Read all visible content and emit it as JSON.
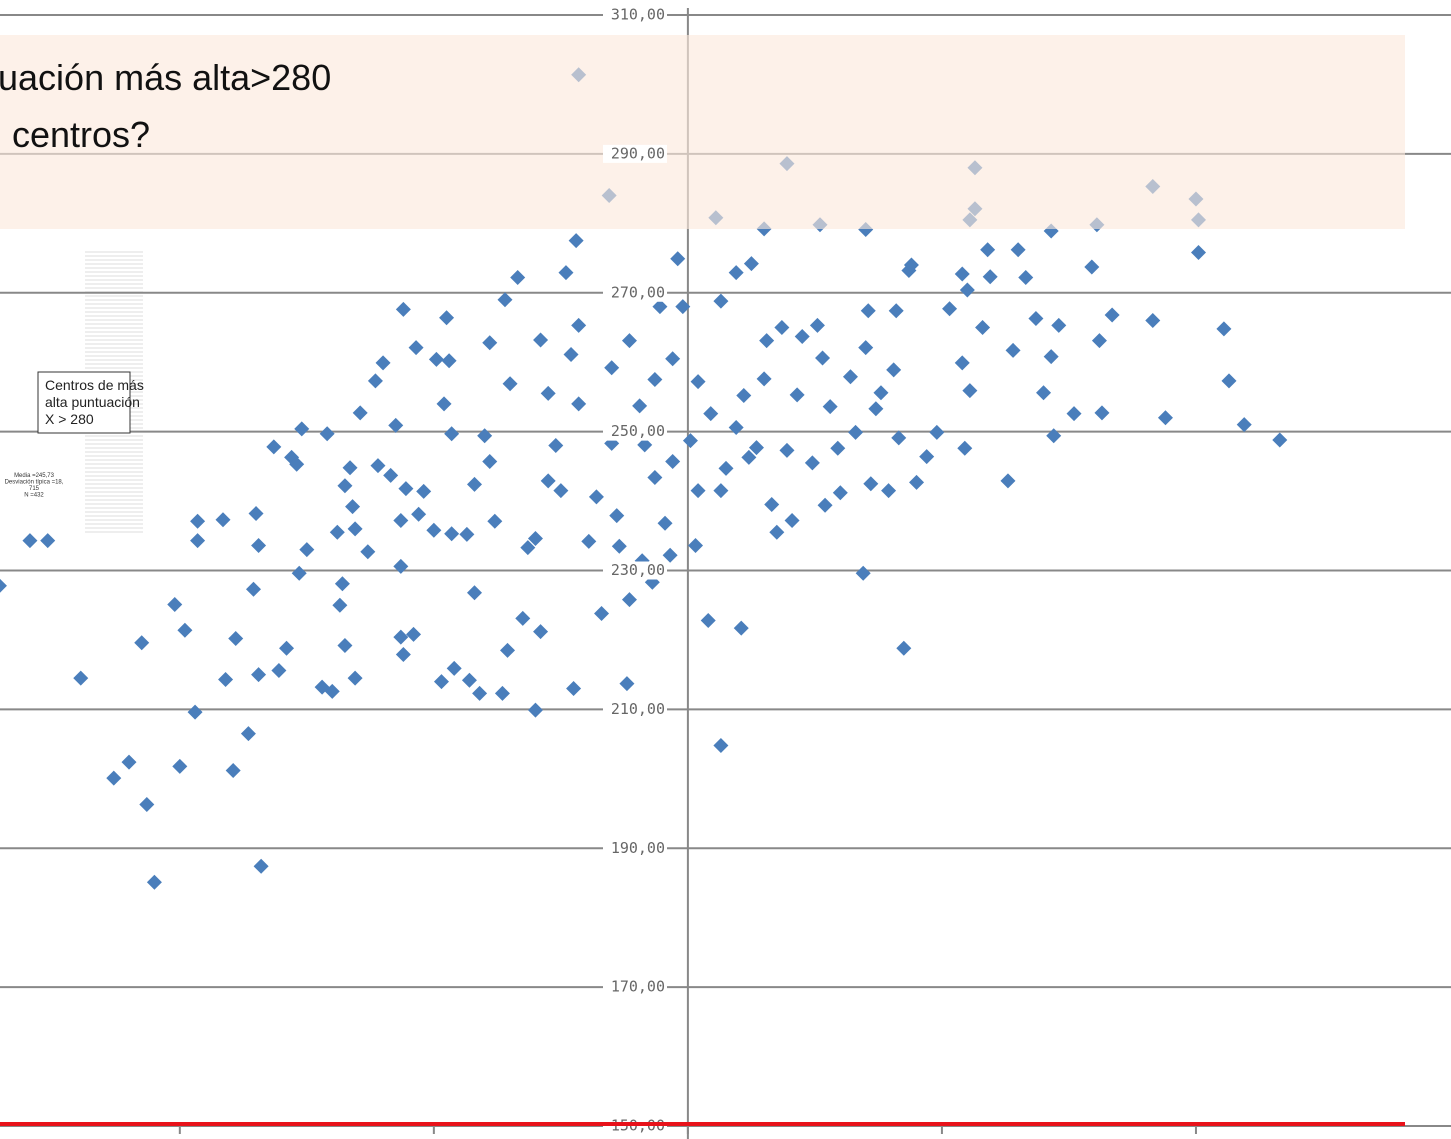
{
  "chart_data": {
    "type": "scatter",
    "title_lines": [
      "uación más alta>280",
      "centros?"
    ],
    "annotation_lines": [
      "Centros de más",
      "alta puntuación",
      "X > 280"
    ],
    "stats_lines": [
      "Media =245,73",
      "Desviación típica =18,",
      "715",
      "N =432"
    ],
    "xlim": [
      -2.7,
      3.0
    ],
    "xticks": [
      -2,
      -1,
      0,
      1,
      2
    ],
    "ylim": [
      150,
      310
    ],
    "yticks": [
      {
        "value": 150,
        "label": "150,00"
      },
      {
        "value": 170,
        "label": "170,00"
      },
      {
        "value": 190,
        "label": "190,00"
      },
      {
        "value": 210,
        "label": "210,00"
      },
      {
        "value": 230,
        "label": "230,00"
      },
      {
        "value": 250,
        "label": "250,00"
      },
      {
        "value": 270,
        "label": "270,00"
      },
      {
        "value": 290,
        "label": "290,00"
      },
      {
        "value": 310,
        "label": "310,00"
      }
    ],
    "grid": true,
    "series": [
      {
        "color": "#4a7ebb",
        "x": [
          -2.71,
          -2.59,
          -2.52,
          -2.39,
          -2.26,
          -2.2,
          -2.15,
          -2.13,
          -2.1,
          -2.02,
          -1.98,
          -2.0,
          -1.94,
          -1.93,
          -1.93,
          -1.83,
          -1.82,
          -1.79,
          -1.78,
          -1.73,
          -1.71,
          -1.7,
          -1.69,
          -1.69,
          -1.68,
          -1.63,
          -1.61,
          -1.58,
          -1.56,
          -1.54,
          -1.53,
          -1.52,
          -1.5,
          -1.44,
          -1.42,
          -1.4,
          -1.38,
          -1.37,
          -1.36,
          -1.35,
          -1.31,
          -1.35,
          -1.33,
          -1.32,
          -1.31,
          -1.29,
          -1.26,
          -1.23,
          -1.22,
          -1.2,
          -1.17,
          -1.15,
          -1.13,
          -1.13,
          -1.13,
          -1.12,
          -1.08,
          -1.07,
          -1.12,
          -1.11,
          -1.06,
          -1.04,
          -1.0,
          -0.99,
          -0.96,
          -0.94,
          -0.93,
          -0.95,
          -0.93,
          -0.97,
          -0.92,
          -0.86,
          -0.84,
          -0.82,
          -0.87,
          -0.84,
          -0.8,
          -0.78,
          -0.78,
          -0.76,
          -0.73,
          -0.71,
          -0.72,
          -0.67,
          -0.7,
          -0.63,
          -0.65,
          -0.6,
          -0.6,
          -0.58,
          -0.58,
          -0.55,
          -0.55,
          -0.52,
          -0.5,
          -0.48,
          -0.46,
          -0.45,
          -0.44,
          -0.43,
          -0.43,
          -0.39,
          -0.36,
          -0.34,
          -0.3,
          -0.3,
          -0.28,
          -0.27,
          -0.24,
          -0.23,
          -0.23,
          -0.19,
          -0.18,
          -0.17,
          -0.14,
          -0.13,
          -0.13,
          -0.11,
          -0.09,
          -0.07,
          -0.06,
          -0.06,
          -0.04,
          -0.02,
          0.01,
          0.03,
          0.04,
          0.04,
          0.08,
          0.09,
          0.13,
          0.13,
          0.13,
          0.15,
          0.19,
          0.19,
          0.21,
          0.22,
          0.24,
          0.25,
          0.27,
          0.3,
          0.31,
          0.33,
          0.35,
          0.37,
          0.39,
          0.41,
          0.43,
          0.45,
          0.49,
          0.51,
          0.53,
          0.54,
          0.56,
          0.59,
          0.6,
          0.64,
          0.66,
          0.69,
          0.7,
          0.71,
          0.72,
          0.74,
          0.76,
          0.79,
          0.81,
          0.82,
          0.83,
          0.85,
          0.87,
          0.88,
          0.9,
          0.94,
          0.98,
          1.03,
          1.08,
          1.09,
          1.11,
          1.08,
          1.1,
          1.16,
          1.18,
          1.19,
          1.26,
          1.28,
          1.3,
          1.33,
          1.37,
          1.4,
          1.43,
          1.44,
          1.43,
          1.46,
          1.52,
          1.59,
          1.62,
          1.63,
          1.67,
          1.83,
          1.88,
          2.01,
          2.11,
          2.13,
          2.19,
          2.33,
          -0.43,
          0.39,
          1.13,
          1.83,
          2.0,
          -0.31,
          0.11,
          1.13,
          1.11,
          2.01,
          0.52,
          0.3,
          1.61,
          0.7
        ],
        "y": [
          227.8,
          234.3,
          234.3,
          214.5,
          200.1,
          202.4,
          219.6,
          196.3,
          185.1,
          225.1,
          221.4,
          201.8,
          209.6,
          234.3,
          237.1,
          237.3,
          214.3,
          201.2,
          220.2,
          206.5,
          227.3,
          238.2,
          233.6,
          215.0,
          187.4,
          247.8,
          215.6,
          218.8,
          246.3,
          245.3,
          229.6,
          250.4,
          233.0,
          213.2,
          249.7,
          212.6,
          235.5,
          225.0,
          228.1,
          219.2,
          214.5,
          242.2,
          244.8,
          239.2,
          236.0,
          252.7,
          232.7,
          257.3,
          245.1,
          259.9,
          243.7,
          250.9,
          230.6,
          237.2,
          220.4,
          217.9,
          220.8,
          262.1,
          267.6,
          241.8,
          238.1,
          241.4,
          235.8,
          260.4,
          254.0,
          260.2,
          235.3,
          266.4,
          249.7,
          214.0,
          215.9,
          214.2,
          226.8,
          212.3,
          235.2,
          242.4,
          249.4,
          262.8,
          245.7,
          237.1,
          212.3,
          218.5,
          269.0,
          272.2,
          256.9,
          233.3,
          223.1,
          234.6,
          209.9,
          263.2,
          221.2,
          255.5,
          242.9,
          248.0,
          241.5,
          272.9,
          261.1,
          213.0,
          277.5,
          254.0,
          265.3,
          234.2,
          240.6,
          223.8,
          248.3,
          259.2,
          237.9,
          233.5,
          213.7,
          225.8,
          263.1,
          253.7,
          231.4,
          248.1,
          228.3,
          243.4,
          257.5,
          268.0,
          236.8,
          232.2,
          245.7,
          260.5,
          274.9,
          268.0,
          248.7,
          233.6,
          257.2,
          241.5,
          222.8,
          252.6,
          204.8,
          268.8,
          241.5,
          244.7,
          250.6,
          272.9,
          221.7,
          255.2,
          246.3,
          274.2,
          247.7,
          257.6,
          263.1,
          239.5,
          235.5,
          265.0,
          247.3,
          237.2,
          255.3,
          263.7,
          245.5,
          265.3,
          260.6,
          239.4,
          253.6,
          247.6,
          241.2,
          257.9,
          249.9,
          229.6,
          262.1,
          267.4,
          242.5,
          253.3,
          255.6,
          241.5,
          258.9,
          267.4,
          249.1,
          218.8,
          273.2,
          274.0,
          242.7,
          246.4,
          249.9,
          267.7,
          259.9,
          247.6,
          255.9,
          272.7,
          270.4,
          265.0,
          276.2,
          272.3,
          242.9,
          261.7,
          276.2,
          272.2,
          266.3,
          255.6,
          260.8,
          249.4,
          278.9,
          265.3,
          252.6,
          273.7,
          263.1,
          252.7,
          266.8,
          266.0,
          252.0,
          275.8,
          264.8,
          257.3,
          251.0,
          248.8,
          301.4,
          288.6,
          288.0,
          285.3,
          283.5,
          284.0,
          280.8,
          282.1,
          280.5,
          280.5,
          279.8,
          279.2,
          279.8,
          279.1
        ]
      }
    ]
  }
}
